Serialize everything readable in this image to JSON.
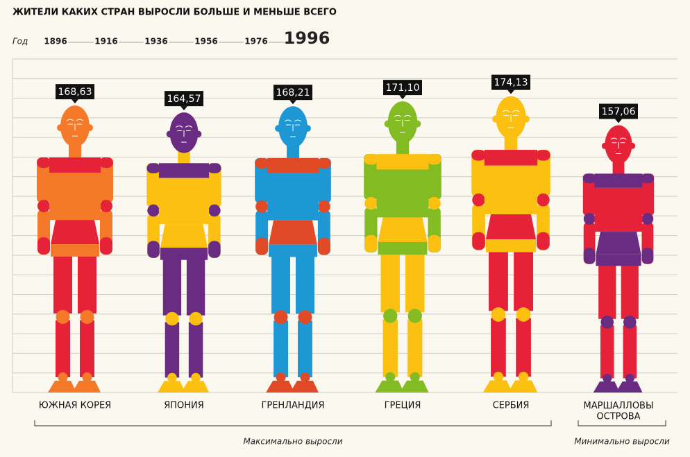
{
  "chart_data": {
    "type": "figure-bar",
    "title": "ЖИТЕЛИ КАКИХ СТРАН ВЫРОСЛИ БОЛЬШЕ И МЕНЬШЕ ВСЕГО",
    "year_label": "Год",
    "years": [
      "1896",
      "1916",
      "1936",
      "1956",
      "1976",
      "1996"
    ],
    "active_year": 5,
    "categories": [
      "ЮЖНАЯ КОРЕЯ",
      "ЯПОНИЯ",
      "ГРЕНЛАНДИЯ",
      "ГРЕЦИЯ",
      "СЕРБИЯ",
      "МАРШАЛЛОВЫ\nОСТРОВА"
    ],
    "values": [
      168.63,
      164.57,
      168.21,
      171.1,
      174.13,
      157.06
    ],
    "value_labels": [
      "168,63",
      "164,57",
      "168,21",
      "171,10",
      "174,13",
      "157,06"
    ],
    "groups": [
      {
        "name": "Максимально выросли",
        "from": 0,
        "to": 4
      },
      {
        "name": "Минимально выросли",
        "from": 5,
        "to": 5
      }
    ],
    "ylim": [
      0,
      196
    ],
    "grid": true,
    "palettes": [
      {
        "head": "#f47a2a",
        "shoulders": "#e52238",
        "chest": "#f47a2a",
        "belly": "#e52238",
        "hips": "#f47a2a",
        "legs": "#e52238",
        "arms": "#f47a2a",
        "elbows": "#e52238",
        "knees": "#f47a2a"
      },
      {
        "head": "#6a2c83",
        "shoulders": "#6a2c83",
        "chest": "#fcc010",
        "belly": "#fcc010",
        "hips": "#6a2c83",
        "legs": "#6a2c83",
        "arms": "#fcc010",
        "elbows": "#6a2c83",
        "knees": "#fcc010"
      },
      {
        "head": "#1e97d5",
        "shoulders": "#e04a26",
        "chest": "#1e97d5",
        "belly": "#e04a26",
        "hips": "#1e97d5",
        "legs": "#1e97d5",
        "arms": "#1e97d5",
        "elbows": "#e04a26",
        "knees": "#e04a26"
      },
      {
        "head": "#83bb22",
        "shoulders": "#fcc010",
        "chest": "#83bb22",
        "belly": "#fcc010",
        "hips": "#83bb22",
        "legs": "#fcc010",
        "arms": "#83bb22",
        "elbows": "#fcc010",
        "knees": "#83bb22"
      },
      {
        "head": "#fcc010",
        "shoulders": "#e52238",
        "chest": "#fcc010",
        "belly": "#e52238",
        "hips": "#fcc010",
        "legs": "#e52238",
        "arms": "#fcc010",
        "elbows": "#e52238",
        "knees": "#fcc010"
      },
      {
        "head": "#e52238",
        "shoulders": "#6a2c83",
        "chest": "#e52238",
        "belly": "#6a2c83",
        "hips": "#6a2c83",
        "legs": "#e52238",
        "arms": "#e52238",
        "elbows": "#6a2c83",
        "knees": "#6a2c83"
      }
    ]
  }
}
